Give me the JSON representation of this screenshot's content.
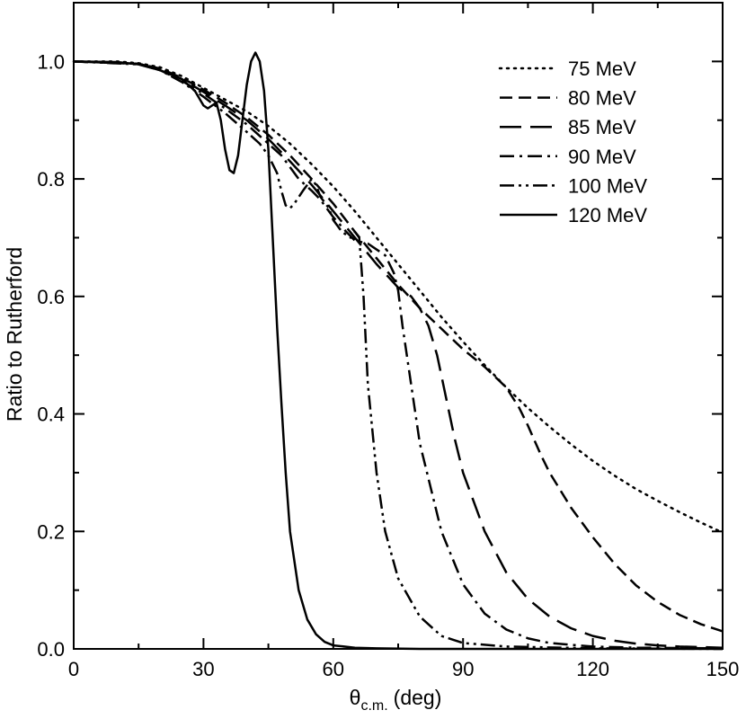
{
  "chart_data": {
    "type": "line",
    "title": "",
    "xlabel_main": "θ",
    "xlabel_sub": "c.m.",
    "xlabel_unit": "(deg)",
    "ylabel": "Ratio to Rutherford",
    "xlim": [
      0,
      150
    ],
    "ylim": [
      0,
      1.1
    ],
    "xticks": [
      0,
      30,
      60,
      90,
      120,
      150
    ],
    "xtick_labels": [
      "0",
      "30",
      "60",
      "90",
      "120",
      "150"
    ],
    "yticks": [
      0,
      0.2,
      0.4,
      0.6,
      0.8,
      1.0
    ],
    "ytick_labels": [
      "0.0",
      "0.2",
      "0.4",
      "0.6",
      "0.8",
      "1.0"
    ],
    "grid": false,
    "legend_position": "top-right",
    "series": [
      {
        "name": "75 MeV",
        "style": "dotted",
        "points": [
          [
            0,
            1.0
          ],
          [
            10,
            1.0
          ],
          [
            15,
            0.997
          ],
          [
            20,
            0.99
          ],
          [
            25,
            0.975
          ],
          [
            30,
            0.955
          ],
          [
            35,
            0.935
          ],
          [
            40,
            0.915
          ],
          [
            45,
            0.89
          ],
          [
            50,
            0.86
          ],
          [
            55,
            0.825
          ],
          [
            60,
            0.787
          ],
          [
            65,
            0.745
          ],
          [
            70,
            0.7
          ],
          [
            75,
            0.655
          ],
          [
            80,
            0.61
          ],
          [
            85,
            0.565
          ],
          [
            90,
            0.523
          ],
          [
            95,
            0.483
          ],
          [
            100,
            0.445
          ],
          [
            105,
            0.41
          ],
          [
            110,
            0.378
          ],
          [
            115,
            0.348
          ],
          [
            120,
            0.32
          ],
          [
            125,
            0.295
          ],
          [
            130,
            0.272
          ],
          [
            135,
            0.252
          ],
          [
            140,
            0.233
          ],
          [
            145,
            0.215
          ],
          [
            150,
            0.198
          ]
        ]
      },
      {
        "name": "80 MeV",
        "style": "short-dash",
        "points": [
          [
            0,
            1.0
          ],
          [
            15,
            0.996
          ],
          [
            20,
            0.988
          ],
          [
            25,
            0.972
          ],
          [
            30,
            0.952
          ],
          [
            35,
            0.93
          ],
          [
            40,
            0.905
          ],
          [
            45,
            0.875
          ],
          [
            50,
            0.84
          ],
          [
            55,
            0.8
          ],
          [
            60,
            0.758
          ],
          [
            65,
            0.71
          ],
          [
            70,
            0.665
          ],
          [
            75,
            0.62
          ],
          [
            80,
            0.58
          ],
          [
            85,
            0.545
          ],
          [
            90,
            0.51
          ],
          [
            95,
            0.48
          ],
          [
            100,
            0.445
          ],
          [
            103,
            0.41
          ],
          [
            105,
            0.38
          ],
          [
            108,
            0.33
          ],
          [
            110,
            0.3
          ],
          [
            115,
            0.24
          ],
          [
            120,
            0.19
          ],
          [
            125,
            0.145
          ],
          [
            130,
            0.108
          ],
          [
            135,
            0.08
          ],
          [
            140,
            0.058
          ],
          [
            145,
            0.042
          ],
          [
            150,
            0.03
          ]
        ]
      },
      {
        "name": "85 MeV",
        "style": "long-dash",
        "points": [
          [
            0,
            1.0
          ],
          [
            15,
            0.996
          ],
          [
            20,
            0.987
          ],
          [
            25,
            0.97
          ],
          [
            30,
            0.948
          ],
          [
            35,
            0.925
          ],
          [
            40,
            0.9
          ],
          [
            45,
            0.868
          ],
          [
            50,
            0.83
          ],
          [
            55,
            0.79
          ],
          [
            60,
            0.745
          ],
          [
            65,
            0.7
          ],
          [
            70,
            0.655
          ],
          [
            75,
            0.615
          ],
          [
            78,
            0.6
          ],
          [
            80,
            0.58
          ],
          [
            82,
            0.55
          ],
          [
            84,
            0.5
          ],
          [
            86,
            0.43
          ],
          [
            88,
            0.36
          ],
          [
            90,
            0.3
          ],
          [
            95,
            0.2
          ],
          [
            100,
            0.13
          ],
          [
            105,
            0.085
          ],
          [
            110,
            0.055
          ],
          [
            115,
            0.035
          ],
          [
            120,
            0.022
          ],
          [
            125,
            0.014
          ],
          [
            130,
            0.009
          ],
          [
            135,
            0.006
          ],
          [
            140,
            0.004
          ],
          [
            145,
            0.003
          ],
          [
            150,
            0.002
          ]
        ]
      },
      {
        "name": "90 MeV",
        "style": "dash-dot",
        "points": [
          [
            0,
            1.0
          ],
          [
            15,
            0.996
          ],
          [
            20,
            0.985
          ],
          [
            25,
            0.967
          ],
          [
            30,
            0.945
          ],
          [
            35,
            0.92
          ],
          [
            40,
            0.893
          ],
          [
            45,
            0.86
          ],
          [
            48,
            0.84
          ],
          [
            50,
            0.82
          ],
          [
            52,
            0.8
          ],
          [
            55,
            0.78
          ],
          [
            57,
            0.765
          ],
          [
            60,
            0.735
          ],
          [
            63,
            0.71
          ],
          [
            65,
            0.695
          ],
          [
            68,
            0.69
          ],
          [
            70,
            0.68
          ],
          [
            72,
            0.67
          ],
          [
            74,
            0.64
          ],
          [
            75,
            0.61
          ],
          [
            76,
            0.55
          ],
          [
            77,
            0.5
          ],
          [
            78,
            0.45
          ],
          [
            80,
            0.35
          ],
          [
            85,
            0.2
          ],
          [
            90,
            0.11
          ],
          [
            95,
            0.06
          ],
          [
            100,
            0.033
          ],
          [
            105,
            0.018
          ],
          [
            110,
            0.01
          ],
          [
            120,
            0.004
          ],
          [
            130,
            0.002
          ],
          [
            150,
            0.001
          ]
        ]
      },
      {
        "name": "100 MeV",
        "style": "dash-dot-dot",
        "points": [
          [
            0,
            1.0
          ],
          [
            15,
            0.995
          ],
          [
            20,
            0.985
          ],
          [
            25,
            0.965
          ],
          [
            30,
            0.94
          ],
          [
            35,
            0.912
          ],
          [
            40,
            0.88
          ],
          [
            43,
            0.86
          ],
          [
            45,
            0.84
          ],
          [
            47,
            0.81
          ],
          [
            48,
            0.78
          ],
          [
            49,
            0.755
          ],
          [
            50,
            0.75
          ],
          [
            51,
            0.758
          ],
          [
            53,
            0.78
          ],
          [
            55,
            0.8
          ],
          [
            56,
            0.79
          ],
          [
            57,
            0.77
          ],
          [
            59,
            0.75
          ],
          [
            60,
            0.73
          ],
          [
            62,
            0.71
          ],
          [
            64,
            0.7
          ],
          [
            65,
            0.71
          ],
          [
            66,
            0.7
          ],
          [
            67,
            0.6
          ],
          [
            68,
            0.45
          ],
          [
            70,
            0.3
          ],
          [
            72,
            0.2
          ],
          [
            75,
            0.12
          ],
          [
            80,
            0.055
          ],
          [
            85,
            0.022
          ],
          [
            90,
            0.01
          ],
          [
            100,
            0.004
          ],
          [
            120,
            0.001
          ],
          [
            150,
            0.0
          ]
        ]
      },
      {
        "name": "120 MeV",
        "style": "solid",
        "points": [
          [
            0,
            1.0
          ],
          [
            10,
            0.999
          ],
          [
            15,
            0.995
          ],
          [
            20,
            0.985
          ],
          [
            25,
            0.97
          ],
          [
            28,
            0.95
          ],
          [
            30,
            0.925
          ],
          [
            31,
            0.92
          ],
          [
            32,
            0.925
          ],
          [
            33,
            0.93
          ],
          [
            34,
            0.9
          ],
          [
            35,
            0.85
          ],
          [
            36,
            0.815
          ],
          [
            37,
            0.81
          ],
          [
            38,
            0.84
          ],
          [
            39,
            0.9
          ],
          [
            40,
            0.96
          ],
          [
            41,
            1.0
          ],
          [
            42,
            1.015
          ],
          [
            43,
            1.0
          ],
          [
            44,
            0.95
          ],
          [
            45,
            0.85
          ],
          [
            46,
            0.7
          ],
          [
            47,
            0.55
          ],
          [
            48,
            0.42
          ],
          [
            49,
            0.3
          ],
          [
            50,
            0.2
          ],
          [
            52,
            0.1
          ],
          [
            54,
            0.05
          ],
          [
            56,
            0.025
          ],
          [
            58,
            0.012
          ],
          [
            60,
            0.006
          ],
          [
            65,
            0.002
          ],
          [
            70,
            0.001
          ],
          [
            80,
            0.0
          ],
          [
            150,
            0.0
          ]
        ]
      }
    ]
  }
}
